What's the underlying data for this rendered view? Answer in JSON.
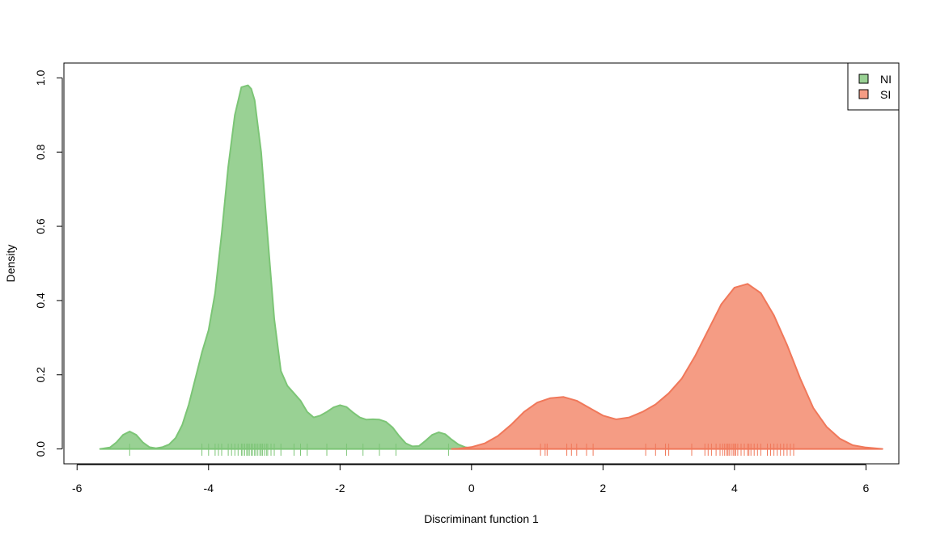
{
  "chart_data": {
    "type": "area",
    "title": "",
    "xlabel": "Discriminant function 1",
    "ylabel": "Density",
    "xlim": [
      -6.2,
      6.5
    ],
    "ylim": [
      -0.04,
      1.04
    ],
    "x_ticks": [
      -6,
      -4,
      -2,
      0,
      2,
      4,
      6
    ],
    "x_tick_labels": [
      "-6",
      "-4",
      "-2",
      "0",
      "2",
      "4",
      "6"
    ],
    "y_ticks": [
      0.0,
      0.2,
      0.4,
      0.6,
      0.8,
      1.0
    ],
    "y_tick_labels": [
      "0.0",
      "0.2",
      "0.4",
      "0.6",
      "0.8",
      "1.0"
    ],
    "grid": false,
    "legend_position": "top-right",
    "series": [
      {
        "name": "NI",
        "fill": "#99d194",
        "stroke": "#7cc576",
        "rug_color": "#7cc576",
        "x": [
          -5.65,
          -5.5,
          -5.4,
          -5.3,
          -5.2,
          -5.1,
          -5.0,
          -4.9,
          -4.8,
          -4.7,
          -4.6,
          -4.5,
          -4.4,
          -4.3,
          -4.2,
          -4.1,
          -4.0,
          -3.9,
          -3.8,
          -3.7,
          -3.6,
          -3.5,
          -3.4,
          -3.35,
          -3.3,
          -3.2,
          -3.1,
          -3.0,
          -2.9,
          -2.8,
          -2.7,
          -2.6,
          -2.5,
          -2.4,
          -2.3,
          -2.2,
          -2.1,
          -2.0,
          -1.9,
          -1.8,
          -1.7,
          -1.6,
          -1.5,
          -1.4,
          -1.3,
          -1.2,
          -1.1,
          -1.0,
          -0.9,
          -0.8,
          -0.7,
          -0.6,
          -0.5,
          -0.4,
          -0.3,
          -0.2,
          -0.1,
          0.0,
          0.1,
          0.2
        ],
        "y": [
          0.0,
          0.004,
          0.018,
          0.038,
          0.047,
          0.038,
          0.018,
          0.005,
          0.002,
          0.005,
          0.012,
          0.03,
          0.065,
          0.12,
          0.19,
          0.26,
          0.32,
          0.42,
          0.58,
          0.76,
          0.9,
          0.975,
          0.98,
          0.97,
          0.94,
          0.8,
          0.57,
          0.35,
          0.21,
          0.17,
          0.15,
          0.13,
          0.1,
          0.085,
          0.09,
          0.1,
          0.112,
          0.118,
          0.113,
          0.098,
          0.085,
          0.079,
          0.08,
          0.079,
          0.073,
          0.058,
          0.035,
          0.015,
          0.007,
          0.008,
          0.022,
          0.038,
          0.045,
          0.04,
          0.025,
          0.012,
          0.005,
          0.002,
          0.0005,
          0.0
        ],
        "rug": [
          -5.2,
          -4.1,
          -4.0,
          -3.9,
          -3.85,
          -3.8,
          -3.7,
          -3.65,
          -3.6,
          -3.55,
          -3.5,
          -3.48,
          -3.45,
          -3.42,
          -3.4,
          -3.38,
          -3.35,
          -3.33,
          -3.3,
          -3.28,
          -3.25,
          -3.22,
          -3.2,
          -3.18,
          -3.15,
          -3.12,
          -3.1,
          -3.05,
          -3.0,
          -2.9,
          -2.7,
          -2.6,
          -2.5,
          -2.2,
          -1.9,
          -1.65,
          -1.4,
          -1.15,
          -0.35
        ]
      },
      {
        "name": "SI",
        "fill": "#f59c84",
        "stroke": "#f0785a",
        "rug_color": "#f0785a",
        "x": [
          -0.3,
          -0.2,
          0.0,
          0.2,
          0.4,
          0.6,
          0.8,
          1.0,
          1.2,
          1.4,
          1.6,
          1.8,
          2.0,
          2.2,
          2.4,
          2.6,
          2.8,
          3.0,
          3.2,
          3.4,
          3.6,
          3.8,
          4.0,
          4.2,
          4.4,
          4.6,
          4.8,
          5.0,
          5.2,
          5.4,
          5.6,
          5.8,
          6.0,
          6.25
        ],
        "y": [
          0.0,
          0.001,
          0.005,
          0.015,
          0.035,
          0.065,
          0.1,
          0.125,
          0.137,
          0.14,
          0.13,
          0.11,
          0.09,
          0.08,
          0.085,
          0.1,
          0.12,
          0.15,
          0.19,
          0.25,
          0.32,
          0.39,
          0.435,
          0.445,
          0.42,
          0.36,
          0.28,
          0.19,
          0.11,
          0.06,
          0.028,
          0.01,
          0.004,
          0.0
        ],
        "rug": [
          1.05,
          1.12,
          1.15,
          1.45,
          1.52,
          1.6,
          1.75,
          1.85,
          2.65,
          2.8,
          2.95,
          3.0,
          3.35,
          3.55,
          3.6,
          3.65,
          3.72,
          3.78,
          3.82,
          3.85,
          3.88,
          3.9,
          3.92,
          3.95,
          3.98,
          4.0,
          4.02,
          4.05,
          4.1,
          4.15,
          4.2,
          4.22,
          4.25,
          4.3,
          4.35,
          4.4,
          4.5,
          4.55,
          4.6,
          4.65,
          4.7,
          4.75,
          4.8,
          4.85,
          4.9
        ]
      }
    ]
  }
}
